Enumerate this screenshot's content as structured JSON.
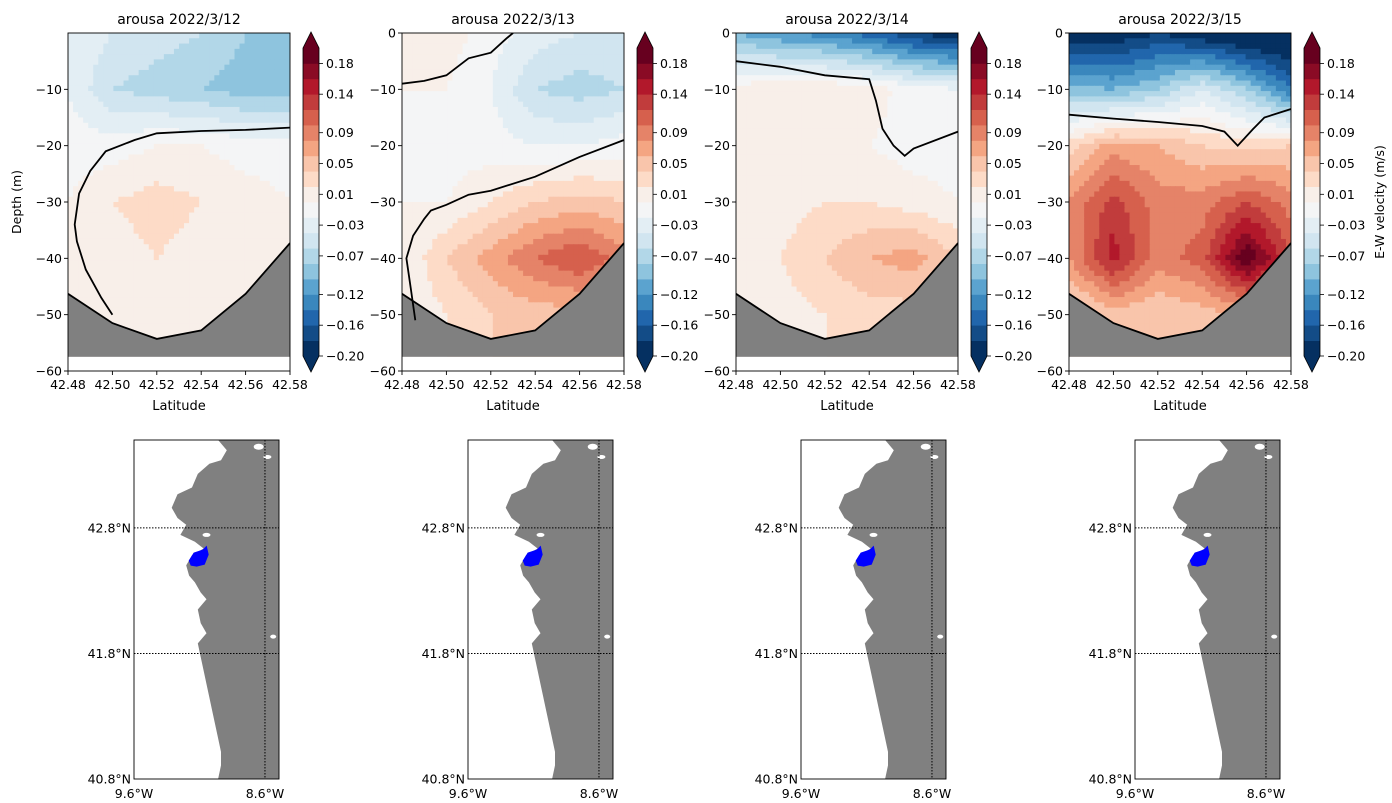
{
  "figure": {
    "colorbar_label": "E-W velocity (m/s)",
    "section_xlabel": "Latitude",
    "section_ylabel": "Depth (m)",
    "colormap": "RdBu_r",
    "land_color": "#808080",
    "region_color": "#0000ff"
  },
  "colorbar": {
    "ticks": [
      -0.2,
      -0.16,
      -0.12,
      -0.07,
      -0.03,
      0.01,
      0.05,
      0.09,
      0.14,
      0.18
    ],
    "tick_labels": [
      "−0.20",
      "−0.16",
      "−0.12",
      "−0.07",
      "−0.03",
      "0.01",
      "0.05",
      "0.09",
      "0.14",
      "0.18"
    ],
    "range": [
      -0.2,
      0.2
    ],
    "extend": "both"
  },
  "chart_data": [
    {
      "type": "contourf",
      "title": "arousa 2022/3/12",
      "xlabel": "Latitude",
      "ylabel": "Depth (m)",
      "xlim": [
        42.48,
        42.58
      ],
      "ylim": [
        -60,
        0
      ],
      "xticks": [
        "42.48",
        "42.50",
        "42.52",
        "42.54",
        "42.56",
        "42.58"
      ],
      "yticks": [
        "−10",
        "−20",
        "−30",
        "−40",
        "−50",
        "−60"
      ],
      "lat": [
        42.48,
        42.5,
        42.52,
        42.54,
        42.56,
        42.58
      ],
      "depth": [
        0,
        -10,
        -20,
        -30,
        -40,
        -50
      ],
      "values": [
        [
          -0.02,
          -0.04,
          -0.05,
          -0.06,
          -0.08,
          -0.09
        ],
        [
          -0.02,
          -0.06,
          -0.07,
          -0.08,
          -0.09,
          -0.09
        ],
        [
          -0.01,
          -0.01,
          0.0,
          0.0,
          -0.01,
          -0.01
        ],
        [
          0.0,
          0.02,
          0.03,
          0.02,
          0.01,
          0.0
        ],
        [
          0.0,
          0.01,
          0.02,
          0.01,
          0.0,
          0.0
        ],
        [
          0.0,
          0.01,
          0.01,
          0.0,
          0.0,
          0.0
        ]
      ],
      "bottom": [
        [
          42.48,
          -46.3
        ],
        [
          42.5,
          -51.5
        ],
        [
          42.52,
          -54.3
        ],
        [
          42.54,
          -52.8
        ],
        [
          42.56,
          -46.3
        ],
        [
          42.58,
          -37.3
        ]
      ],
      "zero_contour": [
        [
          42.58,
          -16.8
        ],
        [
          42.56,
          -17.2
        ],
        [
          42.54,
          -17.4
        ],
        [
          42.52,
          -17.8
        ],
        [
          42.51,
          -19.0
        ],
        [
          42.497,
          -21.0
        ],
        [
          42.49,
          -24.5
        ],
        [
          42.485,
          -28.5
        ],
        [
          42.483,
          -34.0
        ],
        [
          42.484,
          -37.0
        ],
        [
          42.488,
          -42.0
        ],
        [
          42.495,
          -47.0
        ],
        [
          42.5,
          -50.0
        ]
      ]
    },
    {
      "type": "contourf",
      "title": "arousa 2022/3/13",
      "xlabel": "Latitude",
      "ylabel": "",
      "xlim": [
        42.48,
        42.58
      ],
      "ylim": [
        -60,
        0
      ],
      "xticks": [
        "42.48",
        "42.50",
        "42.52",
        "42.54",
        "42.56",
        "42.58"
      ],
      "yticks": [
        "0",
        "−10",
        "−20",
        "−30",
        "−40",
        "−50",
        "−60"
      ],
      "lat": [
        42.48,
        42.5,
        42.52,
        42.54,
        42.56,
        42.58
      ],
      "depth": [
        0,
        -10,
        -20,
        -30,
        -40,
        -50
      ],
      "values": [
        [
          0.02,
          0.01,
          -0.01,
          -0.03,
          -0.04,
          -0.04
        ],
        [
          0.0,
          0.0,
          -0.02,
          -0.06,
          -0.07,
          -0.06
        ],
        [
          0.0,
          -0.01,
          -0.01,
          -0.02,
          -0.02,
          -0.01
        ],
        [
          0.0,
          0.0,
          0.02,
          0.04,
          0.05,
          0.04
        ],
        [
          0.0,
          0.04,
          0.07,
          0.1,
          0.12,
          0.09
        ],
        [
          0.0,
          0.02,
          0.04,
          0.05,
          0.05,
          0.04
        ]
      ],
      "bottom": [
        [
          42.48,
          -46.3
        ],
        [
          42.5,
          -51.5
        ],
        [
          42.52,
          -54.3
        ],
        [
          42.54,
          -52.8
        ],
        [
          42.56,
          -46.3
        ],
        [
          42.58,
          -37.3
        ]
      ],
      "zero_contour_top": [
        [
          42.48,
          -9.0
        ],
        [
          42.49,
          -8.5
        ],
        [
          42.5,
          -7.5
        ],
        [
          42.505,
          -6.0
        ],
        [
          42.51,
          -4.5
        ],
        [
          42.52,
          -3.5
        ],
        [
          42.527,
          -1.0
        ],
        [
          42.53,
          0
        ]
      ],
      "zero_contour": [
        [
          42.58,
          -19.0
        ],
        [
          42.56,
          -22.0
        ],
        [
          42.54,
          -25.5
        ],
        [
          42.52,
          -28.0
        ],
        [
          42.51,
          -28.7
        ],
        [
          42.5,
          -30.5
        ],
        [
          42.493,
          -31.5
        ],
        [
          42.49,
          -33.0
        ],
        [
          42.485,
          -36.0
        ],
        [
          42.482,
          -40.0
        ],
        [
          42.484,
          -45.5
        ],
        [
          42.486,
          -51.0
        ]
      ]
    },
    {
      "type": "contourf",
      "title": "arousa 2022/3/14",
      "xlabel": "Latitude",
      "ylabel": "",
      "xlim": [
        42.48,
        42.58
      ],
      "ylim": [
        -60,
        0
      ],
      "xticks": [
        "42.48",
        "42.50",
        "42.52",
        "42.54",
        "42.56",
        "42.58"
      ],
      "yticks": [
        "0",
        "−10",
        "−20",
        "−30",
        "−40",
        "−50",
        "−60"
      ],
      "lat": [
        42.48,
        42.5,
        42.52,
        42.54,
        42.56,
        42.58
      ],
      "depth": [
        0,
        -10,
        -20,
        -30,
        -40,
        -50
      ],
      "values": [
        [
          -0.1,
          -0.12,
          -0.13,
          -0.15,
          -0.18,
          -0.2
        ],
        [
          0.01,
          0.02,
          0.02,
          0.01,
          -0.01,
          -0.02
        ],
        [
          0.01,
          0.01,
          0.01,
          0.0,
          -0.01,
          -0.01
        ],
        [
          0.0,
          0.01,
          0.02,
          0.02,
          0.01,
          0.0
        ],
        [
          0.0,
          0.02,
          0.04,
          0.06,
          0.07,
          0.04
        ],
        [
          0.0,
          0.01,
          0.02,
          0.03,
          0.03,
          0.02
        ]
      ],
      "bottom": [
        [
          42.48,
          -46.3
        ],
        [
          42.5,
          -51.5
        ],
        [
          42.52,
          -54.3
        ],
        [
          42.54,
          -52.8
        ],
        [
          42.56,
          -46.3
        ],
        [
          42.58,
          -37.3
        ]
      ],
      "zero_contour": [
        [
          42.48,
          -5.0
        ],
        [
          42.5,
          -6.0
        ],
        [
          42.52,
          -7.5
        ],
        [
          42.54,
          -8.2
        ],
        [
          42.543,
          -12.0
        ],
        [
          42.546,
          -17.0
        ],
        [
          42.551,
          -20.0
        ],
        [
          42.556,
          -21.8
        ],
        [
          42.56,
          -20.5
        ],
        [
          42.58,
          -17.5
        ]
      ]
    },
    {
      "type": "contourf",
      "title": "arousa 2022/3/15",
      "xlabel": "Latitude",
      "ylabel": "",
      "xlim": [
        42.48,
        42.58
      ],
      "ylim": [
        -60,
        0
      ],
      "xticks": [
        "42.48",
        "42.50",
        "42.52",
        "42.54",
        "42.56",
        "42.58"
      ],
      "yticks": [
        "0",
        "−10",
        "−20",
        "−30",
        "−40",
        "−50",
        "−60"
      ],
      "lat": [
        42.48,
        42.5,
        42.52,
        42.54,
        42.56,
        42.58
      ],
      "depth": [
        0,
        -10,
        -20,
        -30,
        -40,
        -50
      ],
      "values": [
        [
          -0.2,
          -0.2,
          -0.18,
          -0.2,
          -0.22,
          -0.22
        ],
        [
          -0.09,
          -0.1,
          -0.08,
          -0.04,
          -0.08,
          -0.14
        ],
        [
          0.03,
          0.07,
          0.06,
          0.04,
          0.03,
          0.04
        ],
        [
          0.08,
          0.13,
          0.09,
          0.09,
          0.12,
          0.09
        ],
        [
          0.08,
          0.15,
          0.09,
          0.11,
          0.2,
          0.12
        ],
        [
          0.02,
          0.05,
          0.04,
          0.05,
          0.06,
          0.04
        ]
      ],
      "bottom": [
        [
          42.48,
          -46.3
        ],
        [
          42.5,
          -51.5
        ],
        [
          42.52,
          -54.3
        ],
        [
          42.54,
          -52.8
        ],
        [
          42.56,
          -46.3
        ],
        [
          42.58,
          -37.3
        ]
      ],
      "zero_contour": [
        [
          42.48,
          -14.5
        ],
        [
          42.5,
          -15.2
        ],
        [
          42.52,
          -15.8
        ],
        [
          42.54,
          -16.5
        ],
        [
          42.55,
          -17.5
        ],
        [
          42.556,
          -20.0
        ],
        [
          42.563,
          -17.0
        ],
        [
          42.568,
          -15.0
        ],
        [
          42.58,
          -13.5
        ]
      ]
    }
  ],
  "maps": {
    "xticks": [
      "9.6°W",
      "8.6°W"
    ],
    "yticks": [
      "42.8°N",
      "41.8°N",
      "40.8°N"
    ],
    "lon": [
      -10.0,
      -8.45
    ],
    "lat_range": [
      40.8,
      43.5
    ],
    "grid_lon": [
      -8.6
    ],
    "grid_lat": [
      42.8,
      41.8
    ]
  }
}
